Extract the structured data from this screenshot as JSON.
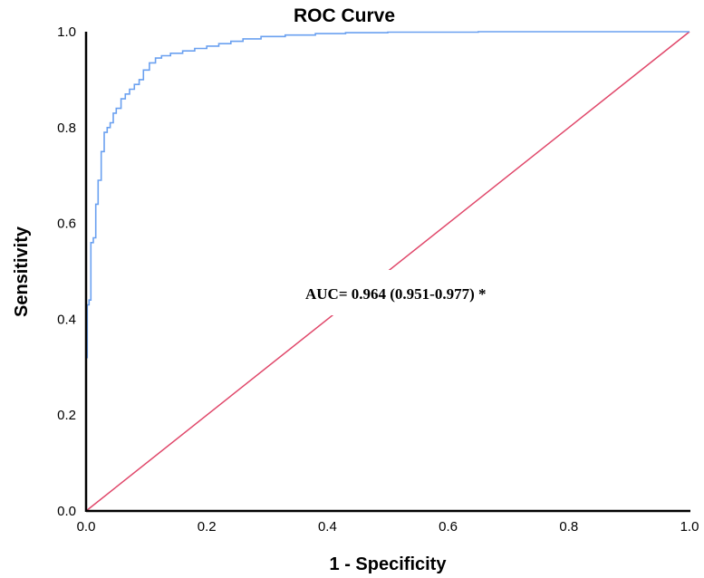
{
  "chart_data": {
    "type": "line",
    "title": "ROC Curve",
    "xlabel": "1 - Specificity",
    "ylabel": "Sensitivity",
    "xlim": [
      0,
      1
    ],
    "ylim": [
      0,
      1
    ],
    "x_ticks": [
      "0.0",
      "0.2",
      "0.4",
      "0.6",
      "0.8",
      "1.0"
    ],
    "y_ticks": [
      "0.0",
      "0.2",
      "0.4",
      "0.6",
      "0.8",
      "1.0"
    ],
    "grid": false,
    "annotation": "AUC= 0.964 (0.951-0.977) *",
    "colors": {
      "roc": "#6aa0f0",
      "reference": "#e0476a",
      "axis": "#000000"
    },
    "series": [
      {
        "style": "step",
        "x": [
          0.0,
          0.0,
          0.002,
          0.002,
          0.005,
          0.005,
          0.008,
          0.008,
          0.012,
          0.012,
          0.016,
          0.016,
          0.02,
          0.02,
          0.025,
          0.025,
          0.03,
          0.03,
          0.035,
          0.035,
          0.04,
          0.04,
          0.045,
          0.045,
          0.05,
          0.05,
          0.058,
          0.058,
          0.065,
          0.065,
          0.072,
          0.072,
          0.08,
          0.08,
          0.088,
          0.088,
          0.095,
          0.095,
          0.105,
          0.105,
          0.115,
          0.115,
          0.125,
          0.125,
          0.14,
          0.14,
          0.16,
          0.16,
          0.18,
          0.18,
          0.2,
          0.2,
          0.22,
          0.22,
          0.24,
          0.24,
          0.26,
          0.26,
          0.29,
          0.29,
          0.33,
          0.33,
          0.38,
          0.38,
          0.43,
          0.43,
          0.5,
          0.5,
          0.65,
          0.65,
          1.0
        ],
        "y": [
          0.0,
          0.32,
          0.32,
          0.43,
          0.43,
          0.44,
          0.44,
          0.56,
          0.56,
          0.57,
          0.57,
          0.64,
          0.64,
          0.69,
          0.69,
          0.75,
          0.75,
          0.79,
          0.79,
          0.8,
          0.8,
          0.81,
          0.81,
          0.83,
          0.83,
          0.84,
          0.84,
          0.86,
          0.86,
          0.87,
          0.87,
          0.88,
          0.88,
          0.89,
          0.89,
          0.9,
          0.9,
          0.92,
          0.92,
          0.935,
          0.935,
          0.945,
          0.945,
          0.95,
          0.95,
          0.955,
          0.955,
          0.96,
          0.96,
          0.965,
          0.965,
          0.97,
          0.97,
          0.975,
          0.975,
          0.98,
          0.98,
          0.985,
          0.985,
          0.99,
          0.99,
          0.993,
          0.993,
          0.996,
          0.996,
          0.998,
          0.998,
          0.999,
          0.999,
          1.0,
          1.0
        ]
      },
      {
        "style": "line",
        "x": [
          0,
          1
        ],
        "y": [
          0,
          1
        ]
      }
    ]
  }
}
